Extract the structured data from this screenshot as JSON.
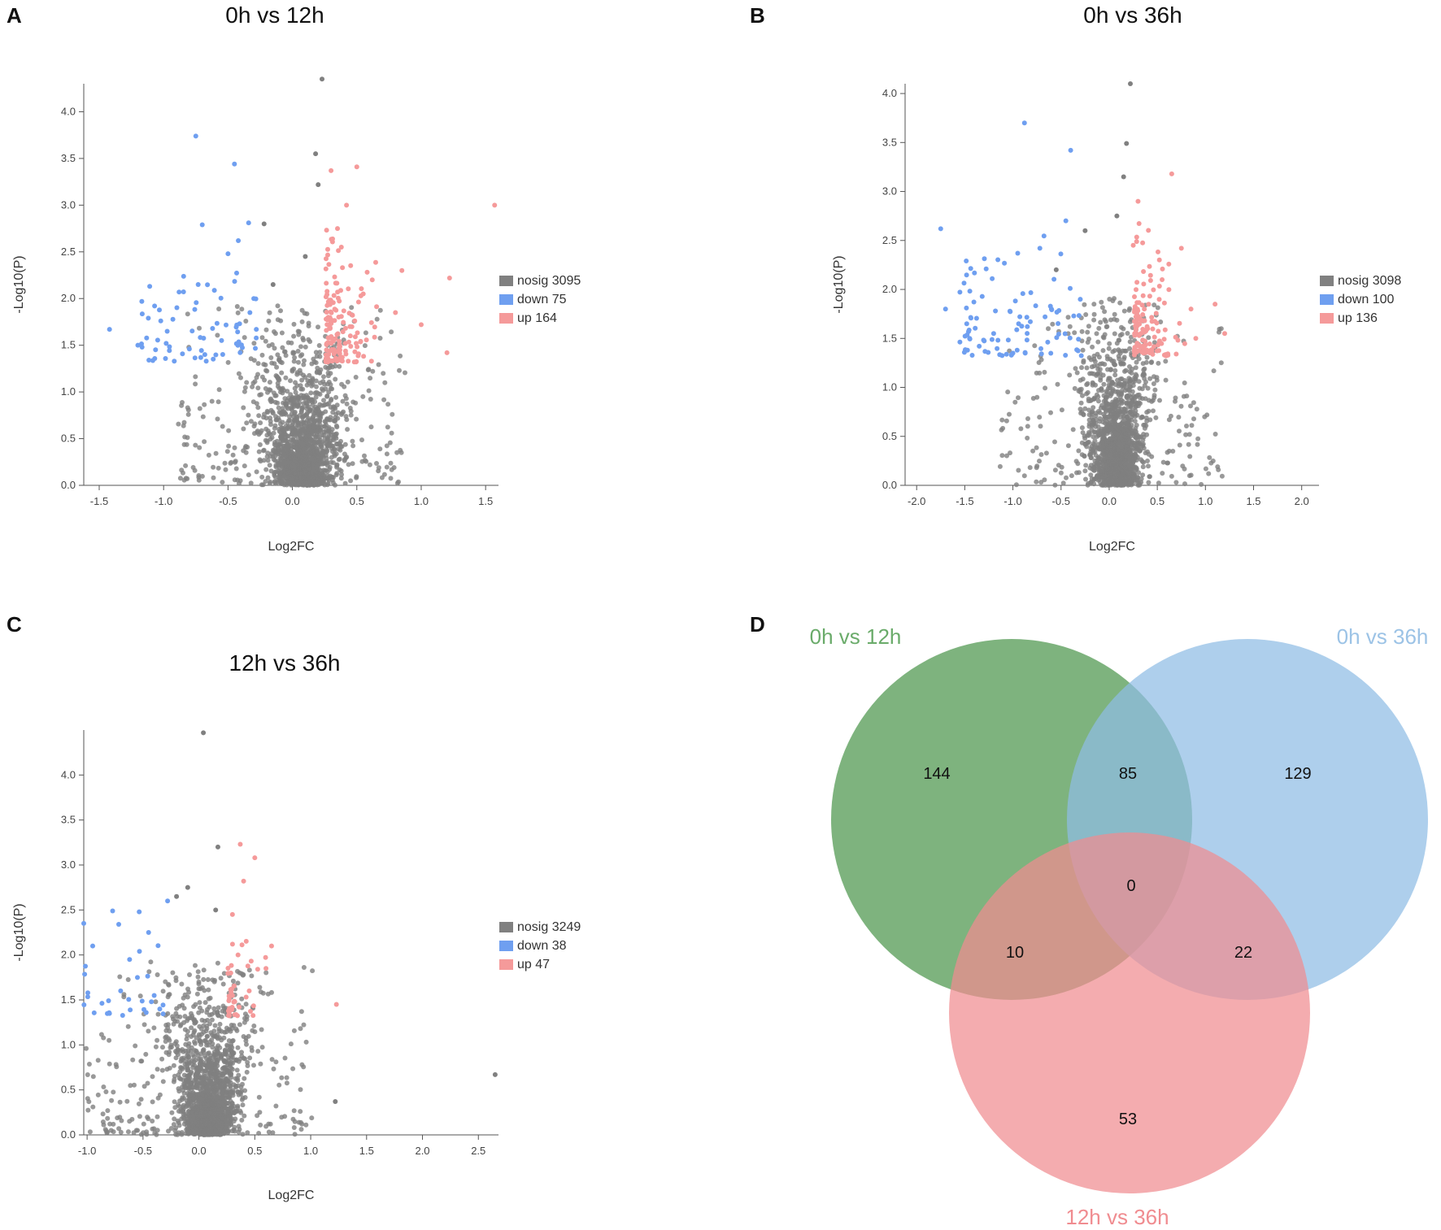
{
  "chart_data": [
    {
      "type": "scatter",
      "panel": "A",
      "title": "0h vs 12h",
      "xlabel": "Log2FC",
      "ylabel": "-Log10(P)",
      "xlim": [
        -1.62,
        1.6
      ],
      "ylim": [
        0,
        4.3
      ],
      "xticks": [
        -1.5,
        -1.0,
        -0.5,
        0.0,
        0.5,
        1.0,
        1.5
      ],
      "xtick_labels": [
        "-1.5",
        "-1.0",
        "-0.5",
        "0.0",
        "0.5",
        "1.0",
        "1.5"
      ],
      "yticks": [
        0,
        0.5,
        1.0,
        1.5,
        2.0,
        2.5,
        3.0,
        3.5,
        4.0
      ],
      "ytick_labels": [
        "0.0",
        "0.5",
        "1.0",
        "1.5",
        "2.0",
        "2.5",
        "3.0",
        "3.5",
        "4.0"
      ],
      "legend": [
        {
          "name": "nosig",
          "count": 3095,
          "color": "#808080"
        },
        {
          "name": "down",
          "count": 75,
          "color": "#6f9ff0"
        },
        {
          "name": "up",
          "count": 164,
          "color": "#f59a9a"
        }
      ],
      "highlight_points": {
        "down": [
          [
            -0.75,
            3.74
          ],
          [
            -0.45,
            3.44
          ],
          [
            -0.7,
            2.79
          ],
          [
            -0.34,
            2.81
          ],
          [
            -0.42,
            2.62
          ],
          [
            -0.5,
            2.48
          ],
          [
            -0.88,
            2.07
          ],
          [
            -0.3,
            2.0
          ],
          [
            -1.42,
            1.67
          ],
          [
            -1.07,
            1.92
          ],
          [
            -0.62,
            1.68
          ],
          [
            -0.98,
            1.52
          ],
          [
            -0.55,
            1.55
          ],
          [
            -0.41,
            1.73
          ],
          [
            -0.8,
            1.46
          ],
          [
            -0.68,
            1.4
          ],
          [
            -1.2,
            1.5
          ],
          [
            -0.33,
            1.85
          ]
        ],
        "up": [
          [
            1.57,
            3.0
          ],
          [
            0.5,
            3.41
          ],
          [
            0.3,
            3.37
          ],
          [
            0.42,
            3.0
          ],
          [
            0.35,
            2.75
          ],
          [
            1.22,
            2.22
          ],
          [
            0.85,
            2.3
          ],
          [
            0.62,
            2.2
          ],
          [
            1.0,
            1.72
          ],
          [
            0.8,
            1.85
          ],
          [
            0.45,
            1.6
          ],
          [
            0.3,
            1.52
          ],
          [
            0.55,
            2.05
          ],
          [
            1.2,
            1.42
          ],
          [
            0.38,
            2.55
          ]
        ]
      },
      "nosig_top_points": [
        [
          0.23,
          4.35
        ],
        [
          0.18,
          3.55
        ],
        [
          0.2,
          3.22
        ],
        [
          -0.15,
          2.15
        ],
        [
          -0.22,
          2.8
        ],
        [
          0.1,
          2.45
        ]
      ]
    },
    {
      "type": "scatter",
      "panel": "B",
      "title": "0h vs 36h",
      "xlabel": "Log2FC",
      "ylabel": "-Log10(P)",
      "xlim": [
        -2.12,
        2.18
      ],
      "ylim": [
        0,
        4.1
      ],
      "xticks": [
        -2.0,
        -1.5,
        -1.0,
        -0.5,
        0.0,
        0.5,
        1.0,
        1.5,
        2.0
      ],
      "xtick_labels": [
        "-2.0",
        "-1.5",
        "-1.0",
        "-0.5",
        "0.0",
        "0.5",
        "1.0",
        "1.5",
        "2.0"
      ],
      "yticks": [
        0,
        0.5,
        1.0,
        1.5,
        2.0,
        2.5,
        3.0,
        3.5,
        4.0
      ],
      "ytick_labels": [
        "0.0",
        "0.5",
        "1.0",
        "1.5",
        "2.0",
        "2.5",
        "3.0",
        "3.5",
        "4.0"
      ],
      "legend": [
        {
          "name": "nosig",
          "count": 3098,
          "color": "#808080"
        },
        {
          "name": "down",
          "count": 100,
          "color": "#6f9ff0"
        },
        {
          "name": "up",
          "count": 136,
          "color": "#f59a9a"
        }
      ],
      "highlight_points": {
        "down": [
          [
            -0.88,
            3.7
          ],
          [
            -0.4,
            3.42
          ],
          [
            -1.75,
            2.62
          ],
          [
            -0.45,
            2.7
          ],
          [
            -0.72,
            2.42
          ],
          [
            -0.95,
            2.37
          ],
          [
            -1.7,
            1.8
          ],
          [
            -1.45,
            1.5
          ],
          [
            -1.2,
            1.55
          ],
          [
            -1.0,
            1.35
          ],
          [
            -0.6,
            1.8
          ],
          [
            -0.3,
            1.9
          ],
          [
            -1.35,
            1.42
          ],
          [
            -0.85,
            1.62
          ]
        ],
        "up": [
          [
            0.65,
            3.18
          ],
          [
            0.3,
            2.9
          ],
          [
            0.25,
            2.45
          ],
          [
            0.75,
            2.42
          ],
          [
            1.1,
            1.85
          ],
          [
            0.85,
            1.8
          ],
          [
            0.55,
            2.1
          ],
          [
            1.2,
            1.55
          ],
          [
            0.4,
            1.6
          ],
          [
            0.9,
            1.5
          ]
        ]
      },
      "nosig_top_points": [
        [
          0.22,
          4.1
        ],
        [
          0.18,
          3.49
        ],
        [
          0.15,
          3.15
        ],
        [
          0.08,
          2.75
        ],
        [
          -0.25,
          2.6
        ],
        [
          -0.55,
          2.2
        ]
      ]
    },
    {
      "type": "scatter",
      "panel": "C",
      "title": "12h vs 36h",
      "xlabel": "Log2FC",
      "ylabel": "-Log10(P)",
      "xlim": [
        -1.03,
        2.68
      ],
      "ylim": [
        0,
        4.5
      ],
      "xticks": [
        -1.0,
        -0.5,
        0.0,
        0.5,
        1.0,
        1.5,
        2.0,
        2.5
      ],
      "xtick_labels": [
        "-1.0",
        "-0.5",
        "0.0",
        "0.5",
        "1.0",
        "1.5",
        "2.0",
        "2.5"
      ],
      "yticks": [
        0,
        0.5,
        1.0,
        1.5,
        2.0,
        2.5,
        3.0,
        3.5,
        4.0
      ],
      "ytick_labels": [
        "0.0",
        "0.5",
        "1.0",
        "1.5",
        "2.0",
        "2.5",
        "3.0",
        "3.5",
        "4.0"
      ],
      "legend": [
        {
          "name": "nosig",
          "count": 3249,
          "color": "#808080"
        },
        {
          "name": "down",
          "count": 38,
          "color": "#6f9ff0"
        },
        {
          "name": "up",
          "count": 47,
          "color": "#f59a9a"
        }
      ],
      "highlight_points": {
        "down": [
          [
            -1.03,
            2.35
          ],
          [
            -0.95,
            2.1
          ],
          [
            -0.28,
            2.6
          ],
          [
            -0.45,
            2.25
          ],
          [
            -0.62,
            1.95
          ],
          [
            -0.7,
            1.6
          ],
          [
            -0.4,
            1.55
          ],
          [
            -0.55,
            1.75
          ],
          [
            -0.35,
            1.4
          ],
          [
            -0.8,
            1.35
          ]
        ],
        "up": [
          [
            0.37,
            3.23
          ],
          [
            0.5,
            3.08
          ],
          [
            0.4,
            2.82
          ],
          [
            0.3,
            2.45
          ],
          [
            0.65,
            2.1
          ],
          [
            0.35,
            2.0
          ],
          [
            0.6,
            1.85
          ],
          [
            1.23,
            1.45
          ],
          [
            0.3,
            1.55
          ],
          [
            0.45,
            1.6
          ]
        ]
      },
      "nosig_top_points": [
        [
          0.04,
          4.47
        ],
        [
          0.17,
          3.2
        ],
        [
          -0.1,
          2.75
        ],
        [
          -0.2,
          2.65
        ],
        [
          0.15,
          2.5
        ],
        [
          2.65,
          0.67
        ],
        [
          1.22,
          0.37
        ]
      ]
    },
    {
      "type": "venn",
      "panel": "D",
      "sets": [
        {
          "name": "0h vs 12h",
          "color": "#5a9e5a",
          "label_color": "#6aab6a"
        },
        {
          "name": "0h vs 36h",
          "color": "#8fbde4",
          "label_color": "#9cc3e6"
        },
        {
          "name": "12h vs 36h",
          "color": "#f08c90",
          "label_color": "#f08c90"
        }
      ],
      "regions": {
        "only_0h_vs_12h": 144,
        "only_0h_vs_36h": 129,
        "only_12h_vs_36h": 53,
        "0h_vs_12h_and_0h_vs_36h": 85,
        "0h_vs_12h_and_12h_vs_36h": 10,
        "0h_vs_36h_and_12h_vs_36h": 22,
        "all_three": 0
      }
    }
  ],
  "panel_labels": [
    "A",
    "B",
    "C",
    "D"
  ]
}
